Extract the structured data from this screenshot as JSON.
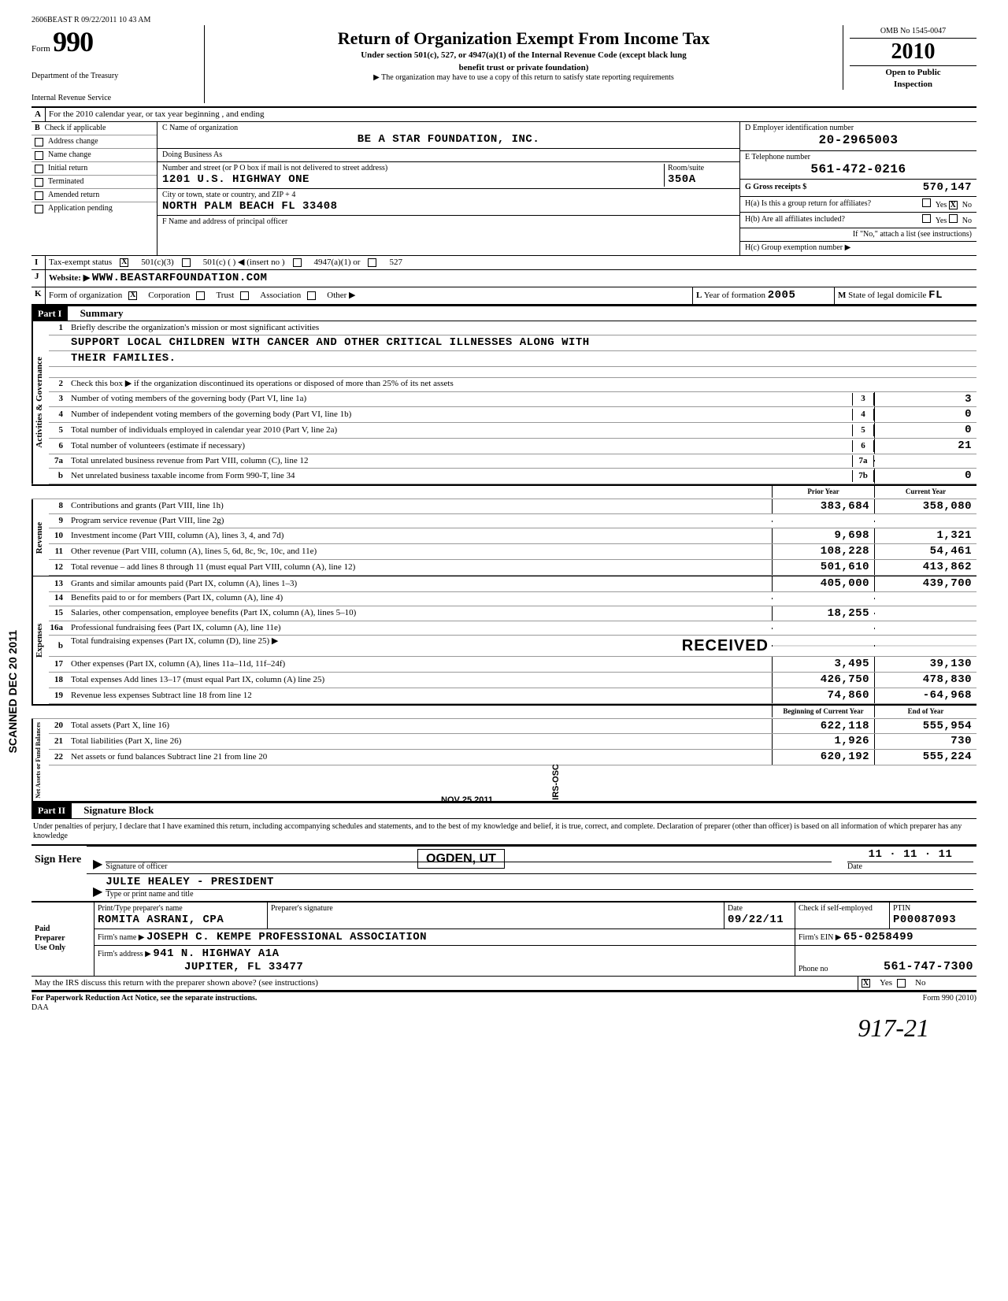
{
  "stamp_text": "2606BEAST R 09/22/2011 10 43 AM",
  "form": {
    "label": "Form",
    "number": "990",
    "dept1": "Department of the Treasury",
    "dept2": "Internal Revenue Service"
  },
  "header": {
    "title": "Return of Organization Exempt From Income Tax",
    "sub1": "Under section 501(c), 527, or 4947(a)(1) of the Internal Revenue Code (except black lung",
    "sub2": "benefit trust or private foundation)",
    "sub3": "▶ The organization may have to use a copy of this return to satisfy state reporting requirements"
  },
  "right": {
    "omb": "OMB No 1545-0047",
    "year": "2010",
    "open1": "Open to Public",
    "open2": "Inspection"
  },
  "lineA": "For the 2010 calendar year, or tax year beginning                                                  , and ending",
  "B": {
    "header": "Check if applicable",
    "items": [
      "Address change",
      "Name change",
      "Initial return",
      "Terminated",
      "Amended return",
      "Application pending"
    ]
  },
  "C": {
    "label": "C  Name of organization",
    "name": "BE A STAR FOUNDATION, INC.",
    "dba_label": "Doing Business As",
    "addr_label": "Number and street (or P O box if mail is not delivered to street address)",
    "addr": "1201 U.S. HIGHWAY ONE",
    "room_label": "Room/suite",
    "room": "350A",
    "city_label": "City or town, state or country, and ZIP + 4",
    "city": "NORTH PALM BEACH        FL   33408",
    "f_label": "F  Name and address of principal officer"
  },
  "D": {
    "label": "D   Employer identification number",
    "val": "20-2965003"
  },
  "E": {
    "label": "E   Telephone number",
    "val": "561-472-0216"
  },
  "G": {
    "label": "G Gross receipts $",
    "val": "570,147"
  },
  "H": {
    "a": "H(a)  Is this a group return for affiliates?",
    "a_yes": "Yes",
    "a_no": "No",
    "a_checked": "X",
    "b": "H(b)  Are all affiliates included?",
    "b_yes": "Yes",
    "b_no": "No",
    "note": "If \"No,\" attach a list (see instructions)",
    "c": "H(c)  Group exemption number ▶"
  },
  "I": {
    "label": "Tax-exempt status",
    "opt1": "501(c)(3)",
    "x1": "X",
    "opt2": "501(c) (        ) ◀ (insert no )",
    "opt3": "4947(a)(1) or",
    "opt4": "527"
  },
  "J": {
    "label": "Website: ▶",
    "val": "WWW.BEASTARFOUNDATION.COM"
  },
  "K": {
    "label": "Form of organization",
    "x": "X",
    "corp": "Corporation",
    "trust": "Trust",
    "assoc": "Association",
    "other": "Other ▶"
  },
  "L": {
    "label": "Year of formation",
    "val": "2005"
  },
  "M": {
    "label": "State of legal domicile",
    "val": "FL"
  },
  "partI": {
    "header": "Part I",
    "title": "Summary"
  },
  "gov": {
    "label": "Activities & Governance",
    "l1a": "Briefly describe the organization's mission or most significant activities",
    "l1b": "SUPPORT LOCAL CHILDREN WITH CANCER AND OTHER CRITICAL ILLNESSES ALONG WITH",
    "l1c": "THEIR FAMILIES.",
    "l2": "Check this box ▶       if the organization discontinued its operations or disposed of more than 25% of its net assets",
    "l3": "Number of voting members of the governing body (Part VI, line 1a)",
    "v3": "3",
    "l4": "Number of independent voting members of the governing body (Part VI, line 1b)",
    "v4": "0",
    "l5": "Total number of individuals employed in calendar year 2010 (Part V, line 2a)",
    "v5": "0",
    "l6": "Total number of volunteers (estimate if necessary)",
    "v6": "21",
    "l7a": "Total unrelated business revenue from Part VIII, column (C), line 12",
    "n7a": "7a",
    "l7b": "Net unrelated business taxable income from Form 990-T, line 34",
    "n7b": "7b",
    "v7b": "0"
  },
  "colheads": {
    "prior": "Prior Year",
    "current": "Current Year"
  },
  "rev": {
    "label": "Revenue",
    "rows": [
      {
        "n": "8",
        "t": "Contributions and grants (Part VIII, line 1h)",
        "p": "383,684",
        "c": "358,080"
      },
      {
        "n": "9",
        "t": "Program service revenue (Part VIII, line 2g)",
        "p": "",
        "c": ""
      },
      {
        "n": "10",
        "t": "Investment income (Part VIII, column (A), lines 3, 4, and 7d)",
        "p": "9,698",
        "c": "1,321"
      },
      {
        "n": "11",
        "t": "Other revenue (Part VIII, column (A), lines 5, 6d, 8c, 9c, 10c, and 11e)",
        "p": "108,228",
        "c": "54,461"
      },
      {
        "n": "12",
        "t": "Total revenue – add lines 8 through 11 (must equal Part VIII, column (A), line 12)",
        "p": "501,610",
        "c": "413,862"
      }
    ]
  },
  "exp": {
    "label": "Expenses",
    "rows": [
      {
        "n": "13",
        "t": "Grants and similar amounts paid (Part IX, column (A), lines 1–3)",
        "p": "405,000",
        "c": "439,700"
      },
      {
        "n": "14",
        "t": "Benefits paid to or for members (Part IX, column (A), line 4)",
        "p": "",
        "c": ""
      },
      {
        "n": "15",
        "t": "Salaries, other compensation, employee benefits (Part IX, column (A), lines 5–10)",
        "p": "18,255",
        "c": ""
      },
      {
        "n": "16a",
        "t": "Professional fundraising fees (Part IX, column (A), line 11e)",
        "p": "",
        "c": ""
      }
    ],
    "l16b": "Total fundraising expenses (Part IX, column (D), line 25) ▶",
    "stamp_recv": "RECEIVED",
    "rows2": [
      {
        "n": "17",
        "t": "Other expenses (Part IX, column (A), lines 11a–11d, 11f–24f)",
        "p": "3,495",
        "c": "39,130"
      },
      {
        "n": "18",
        "t": "Total expenses Add lines 13–17 (must equal Part IX, column (A) line 25)",
        "p": "426,750",
        "c": "478,830"
      },
      {
        "n": "19",
        "t": "Revenue less expenses Subtract line 18 from line 12",
        "p": "74,860",
        "c": "-64,968"
      }
    ],
    "stamp_date": "NOV 25 2011",
    "stamp_osc": "IRS-OSC"
  },
  "net": {
    "label": "Net Assets or Fund Balances",
    "heads": {
      "begin": "Beginning of Current Year",
      "end": "End of Year"
    },
    "rows": [
      {
        "n": "20",
        "t": "Total assets (Part X, line 16)",
        "p": "622,118",
        "c": "555,954"
      },
      {
        "n": "21",
        "t": "Total liabilities (Part X, line 26)",
        "p": "1,926",
        "c": "730"
      },
      {
        "n": "22",
        "t": "Net assets or fund balances Subtract line 21 from line 20",
        "p": "620,192",
        "c": "555,224"
      }
    ],
    "stamp_ogden": "OGDEN, UT"
  },
  "partII": {
    "header": "Part II",
    "title": "Signature Block"
  },
  "decl": "Under penalties of perjury, I declare that I have examined this return, including accompanying schedules and statements, and to the best of my knowledge and belief, it is true, correct, and complete. Declaration of preparer (other than officer) is based on all information of which preparer has any knowledge",
  "sign": {
    "here": "Sign Here",
    "sig_label": "Signature of officer",
    "date_label": "Date",
    "date_val": "11 · 11 · 11",
    "name": "JULIE HEALEY - PRESIDENT",
    "name_label": "Type or print name and title"
  },
  "paid": {
    "label1": "Paid",
    "label2": "Preparer",
    "label3": "Use Only",
    "h1": "Print/Type preparer's name",
    "h2": "Preparer's signature",
    "h3": "Date",
    "h4": "Check       if self-employed",
    "h5": "PTIN",
    "name": "ROMITA ASRANI, CPA",
    "date": "09/22/11",
    "ptin": "P00087093",
    "firm_label": "Firm's name    ▶",
    "firm": "JOSEPH C. KEMPE PROFESSIONAL ASSOCIATION",
    "ein_label": "Firm's EIN ▶",
    "ein": "65-0258499",
    "addr_label": "Firm's address ▶",
    "addr1": "941 N. HIGHWAY A1A",
    "addr2": "JUPITER, FL   33477",
    "phone_label": "Phone no",
    "phone": "561-747-7300"
  },
  "bottom": {
    "q": "May the IRS discuss this return with the preparer shown above? (see instructions)",
    "x": "X",
    "yes": "Yes",
    "no": "No",
    "pra": "For Paperwork Reduction Act Notice, see the separate instructions.",
    "daa": "DAA",
    "form": "Form 990 (2010)",
    "handwrite": "917-21"
  },
  "sidestamp": "SCANNED DEC 20 2011"
}
